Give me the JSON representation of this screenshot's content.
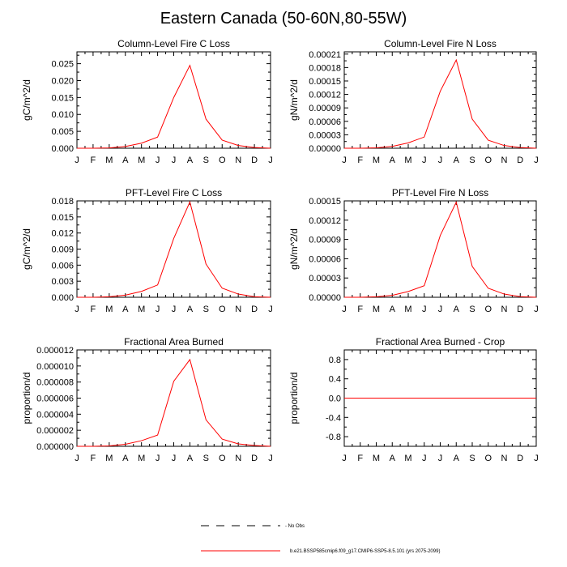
{
  "title": "Eastern Canada (50-60N,80-55W)",
  "chart_data": [
    {
      "type": "line",
      "title": "Column-Level Fire C Loss",
      "ylabel": "gC/m^2/d",
      "categories": [
        "J",
        "F",
        "M",
        "A",
        "M",
        "J",
        "J",
        "A",
        "S",
        "O",
        "N",
        "D",
        "J"
      ],
      "yticks": [
        "0.000",
        "0.005",
        "0.010",
        "0.015",
        "0.020",
        "0.025"
      ],
      "ylim": [
        0,
        0.0285
      ],
      "series": [
        {
          "color": "#ff0000",
          "values": [
            0,
            0,
            0.0001,
            0.0005,
            0.0015,
            0.0033,
            0.015,
            0.0245,
            0.0086,
            0.0024,
            0.0008,
            0.0002,
            0
          ]
        }
      ]
    },
    {
      "type": "line",
      "title": "Column-Level Fire N Loss",
      "ylabel": "gN/m^2/d",
      "categories": [
        "J",
        "F",
        "M",
        "A",
        "M",
        "J",
        "J",
        "A",
        "S",
        "O",
        "N",
        "D",
        "J"
      ],
      "yticks": [
        "0.00000",
        "0.00003",
        "0.00006",
        "0.00009",
        "0.00012",
        "0.00015",
        "0.00018",
        "0.00021"
      ],
      "ylim": [
        0,
        0.000215
      ],
      "series": [
        {
          "color": "#ff0000",
          "values": [
            0,
            0,
            1e-06,
            4e-06,
            1.2e-05,
            2.5e-05,
            0.000127,
            0.000197,
            6.5e-05,
            1.8e-05,
            6e-06,
            1.5e-06,
            0
          ]
        }
      ]
    },
    {
      "type": "line",
      "title": "PFT-Level Fire C Loss",
      "ylabel": "gC/m^2/d",
      "categories": [
        "J",
        "F",
        "M",
        "A",
        "M",
        "J",
        "J",
        "A",
        "S",
        "O",
        "N",
        "D",
        "J"
      ],
      "yticks": [
        "0.000",
        "0.003",
        "0.006",
        "0.009",
        "0.012",
        "0.015",
        "0.018"
      ],
      "ylim": [
        0,
        0.018
      ],
      "series": [
        {
          "color": "#ff0000",
          "values": [
            0,
            0,
            0.0001,
            0.0004,
            0.0011,
            0.0023,
            0.011,
            0.0178,
            0.0062,
            0.0017,
            0.0006,
            0.0001,
            0
          ]
        }
      ]
    },
    {
      "type": "line",
      "title": "PFT-Level Fire N Loss",
      "ylabel": "gN/m^2/d",
      "categories": [
        "J",
        "F",
        "M",
        "A",
        "M",
        "J",
        "J",
        "A",
        "S",
        "O",
        "N",
        "D",
        "J"
      ],
      "yticks": [
        "0.00000",
        "0.00003",
        "0.00006",
        "0.00009",
        "0.00012",
        "0.00015"
      ],
      "ylim": [
        0,
        0.00015
      ],
      "series": [
        {
          "color": "#ff0000",
          "values": [
            0,
            0,
            8e-07,
            3e-06,
            9e-06,
            1.8e-05,
            9.6e-05,
            0.000148,
            4.8e-05,
            1.4e-05,
            5e-06,
            1e-06,
            0
          ]
        }
      ]
    },
    {
      "type": "line",
      "title": "Fractional Area Burned",
      "ylabel": "proportion/d",
      "categories": [
        "J",
        "F",
        "M",
        "A",
        "M",
        "J",
        "J",
        "A",
        "S",
        "O",
        "N",
        "D",
        "J"
      ],
      "yticks": [
        "0.000000",
        "0.000002",
        "0.000004",
        "0.000006",
        "0.000008",
        "0.000010",
        "0.000012"
      ],
      "ylim": [
        0,
        1.2e-05
      ],
      "series": [
        {
          "color": "#ff0000",
          "values": [
            0,
            0,
            5e-08,
            2.5e-07,
            7e-07,
            1.4e-06,
            8.1e-06,
            1.08e-05,
            3.3e-06,
            9e-07,
            3e-07,
            1e-07,
            0
          ]
        }
      ]
    },
    {
      "type": "line",
      "title": "Fractional Area Burned - Crop",
      "ylabel": "proportion/d",
      "categories": [
        "J",
        "F",
        "M",
        "A",
        "M",
        "J",
        "J",
        "A",
        "S",
        "O",
        "N",
        "D",
        "J"
      ],
      "yticks": [
        "-0.8",
        "-0.4",
        "0.0",
        "0.4",
        "0.8"
      ],
      "ylim": [
        -1,
        1
      ],
      "series": [
        {
          "color": "#ff0000",
          "values": [
            0,
            0,
            0,
            0,
            0,
            0,
            0,
            0,
            0,
            0,
            0,
            0,
            0
          ]
        }
      ]
    }
  ],
  "legend": [
    {
      "label": "- No Obs",
      "style": "dashed",
      "color": "#000000"
    },
    {
      "label": "b.e21.BSSP585cmip6.f09_g17.CMIP6-SSP5-8.5.101 (yrs 2075-2099)",
      "style": "solid",
      "color": "#ff0000"
    }
  ]
}
